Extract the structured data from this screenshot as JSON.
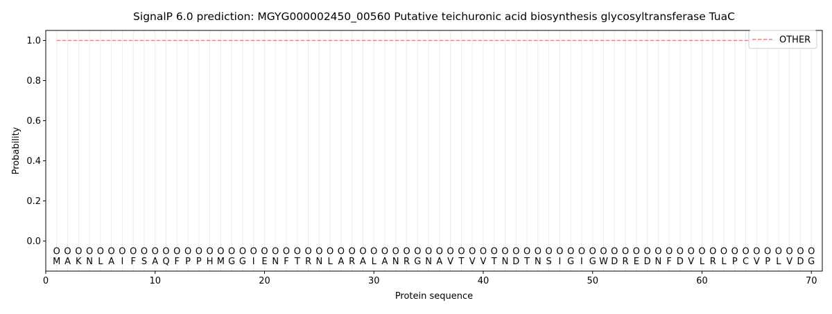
{
  "chart_data": {
    "type": "line",
    "title": "SignalP 6.0 prediction: MGYG000002450_00560 Putative teichuronic acid biosynthesis glycosyltransferase TuaC",
    "xlabel": "Protein sequence",
    "ylabel": "Probability",
    "xlim": [
      0,
      71
    ],
    "ylim": [
      -0.15,
      1.05
    ],
    "x_ticks": [
      0,
      10,
      20,
      30,
      40,
      50,
      60,
      70
    ],
    "y_ticks": [
      0.0,
      0.2,
      0.4,
      0.6,
      0.8,
      1.0
    ],
    "x_tick_labels": [
      "0",
      "10",
      "20",
      "30",
      "40",
      "50",
      "60",
      "70"
    ],
    "y_tick_labels": [
      "0.0",
      "0.2",
      "0.4",
      "0.6",
      "0.8",
      "1.0"
    ],
    "sequence": [
      "M",
      "A",
      "K",
      "N",
      "L",
      "A",
      "I",
      "F",
      "S",
      "A",
      "Q",
      "F",
      "P",
      "P",
      "H",
      "M",
      "G",
      "G",
      "I",
      "E",
      "N",
      "F",
      "T",
      "R",
      "N",
      "L",
      "A",
      "R",
      "A",
      "L",
      "A",
      "N",
      "R",
      "G",
      "N",
      "A",
      "V",
      "T",
      "V",
      "V",
      "T",
      "N",
      "D",
      "T",
      "N",
      "S",
      "I",
      "G",
      "I",
      "G",
      "W",
      "D",
      "R",
      "E",
      "D",
      "N",
      "F",
      "D",
      "V",
      "L",
      "R",
      "L",
      "P",
      "C",
      "V",
      "P",
      "L",
      "V",
      "D",
      "G"
    ],
    "region_marker": "O",
    "region_marker_y": -0.05,
    "series": [
      {
        "name": "OTHER",
        "color": "#f08080",
        "style": "dashed",
        "x_start": 1,
        "x_end": 70,
        "value": 1.0
      }
    ],
    "legend_position": "top-right",
    "vertical_gridlines": true,
    "colors": {
      "marker": "#888888",
      "gridline": "#ebebeb",
      "axis": "#000000"
    }
  }
}
